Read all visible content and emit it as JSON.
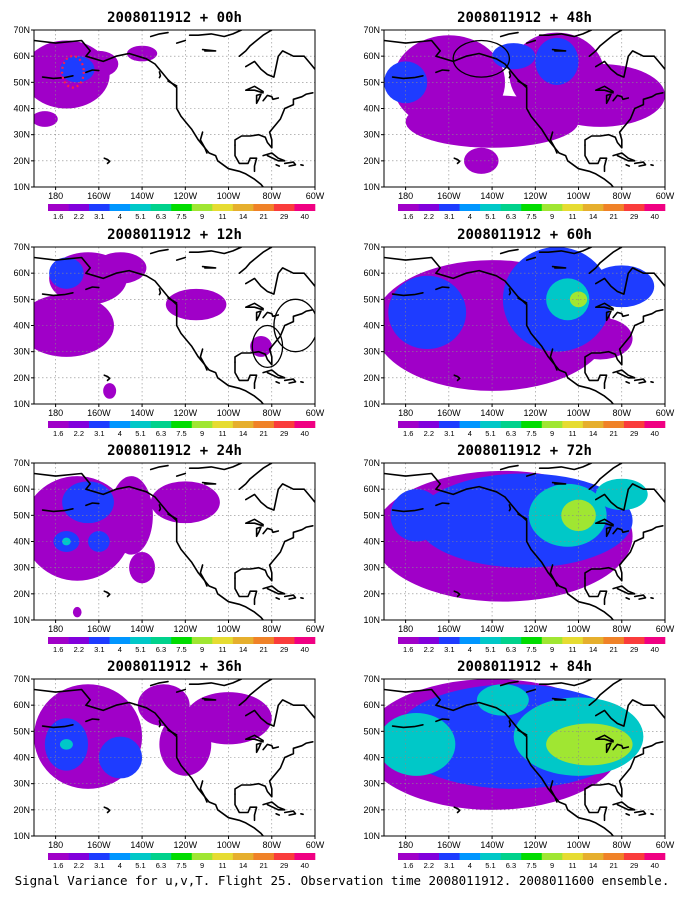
{
  "figure": {
    "caption": "Signal Variance for u,v,T. Flight 25. Observation time 2008011912. 2008011600 ensemble.",
    "panels": [
      {
        "title": "2008011912 + 00h",
        "markers": [
          {
            "lon": -172,
            "lat": 54,
            "rlon": 5,
            "rlat": 6,
            "style": "red-dashed"
          }
        ],
        "blobs": [
          [
            -175,
            53,
            20,
            13,
            1
          ],
          [
            -170,
            55,
            8,
            5,
            2
          ],
          [
            -160,
            57,
            9,
            5,
            1
          ],
          [
            -185,
            36,
            6,
            3,
            1
          ],
          [
            -140,
            61,
            7,
            3,
            1
          ]
        ]
      },
      {
        "title": "2008011912 + 48h",
        "markers": [
          {
            "lon": -145,
            "lat": 59,
            "rlon": 13,
            "rlat": 7,
            "style": "circle"
          }
        ],
        "blobs": [
          [
            -160,
            50,
            26,
            18,
            1
          ],
          [
            -110,
            53,
            22,
            16,
            1
          ],
          [
            -90,
            45,
            30,
            12,
            1
          ],
          [
            -140,
            35,
            40,
            10,
            1
          ],
          [
            -180,
            50,
            10,
            8,
            2
          ],
          [
            -110,
            58,
            10,
            9,
            2
          ],
          [
            -130,
            60,
            10,
            5,
            2
          ],
          [
            -145,
            20,
            8,
            5,
            1
          ]
        ]
      },
      {
        "title": "2008011912 + 12h",
        "markers": [
          {
            "lon": -82,
            "lat": 32,
            "rlon": 7,
            "rlat": 8,
            "style": "circle"
          },
          {
            "lon": -69,
            "lat": 40,
            "rlon": 10,
            "rlat": 10,
            "style": "circle"
          }
        ],
        "blobs": [
          [
            -175,
            40,
            22,
            12,
            1
          ],
          [
            -165,
            58,
            18,
            10,
            1
          ],
          [
            -150,
            62,
            12,
            6,
            1
          ],
          [
            -175,
            60,
            8,
            6,
            2
          ],
          [
            -115,
            48,
            14,
            6,
            1
          ],
          [
            -85,
            32,
            5,
            4,
            1
          ],
          [
            -155,
            15,
            3,
            3,
            1
          ]
        ]
      },
      {
        "title": "2008011912 + 60h",
        "markers": [],
        "blobs": [
          [
            -140,
            40,
            55,
            25,
            1
          ],
          [
            -110,
            50,
            25,
            20,
            2
          ],
          [
            -170,
            45,
            18,
            14,
            2
          ],
          [
            -105,
            50,
            10,
            8,
            3
          ],
          [
            -100,
            50,
            4,
            3,
            4
          ],
          [
            -80,
            55,
            15,
            8,
            2
          ],
          [
            -90,
            35,
            15,
            8,
            1
          ],
          [
            -140,
            20,
            8,
            4,
            1
          ]
        ]
      },
      {
        "title": "2008011912 + 24h",
        "markers": [],
        "blobs": [
          [
            -170,
            45,
            25,
            20,
            1
          ],
          [
            -175,
            40,
            6,
            4,
            2
          ],
          [
            -160,
            40,
            5,
            4,
            2
          ],
          [
            -165,
            55,
            12,
            8,
            2
          ],
          [
            -120,
            55,
            16,
            8,
            1
          ],
          [
            -145,
            50,
            10,
            15,
            1
          ],
          [
            -175,
            40,
            2,
            1.5,
            3
          ],
          [
            -140,
            30,
            6,
            6,
            1
          ],
          [
            -170,
            13,
            2,
            2,
            1
          ]
        ]
      },
      {
        "title": "2008011912 + 72h",
        "markers": [],
        "blobs": [
          [
            -135,
            42,
            60,
            25,
            1
          ],
          [
            -125,
            48,
            50,
            18,
            2
          ],
          [
            -105,
            50,
            18,
            12,
            3
          ],
          [
            -100,
            50,
            8,
            6,
            4
          ],
          [
            -175,
            50,
            12,
            10,
            2
          ],
          [
            -80,
            58,
            12,
            6,
            3
          ]
        ]
      },
      {
        "title": "2008011912 + 36h",
        "markers": [],
        "blobs": [
          [
            -165,
            48,
            25,
            20,
            1
          ],
          [
            -175,
            45,
            10,
            10,
            2
          ],
          [
            -175,
            45,
            3,
            2,
            3
          ],
          [
            -130,
            60,
            12,
            8,
            1
          ],
          [
            -100,
            55,
            20,
            10,
            1
          ],
          [
            -120,
            45,
            12,
            12,
            1
          ],
          [
            -150,
            40,
            10,
            8,
            2
          ]
        ]
      },
      {
        "title": "2008011912 + 84h",
        "markers": [],
        "blobs": [
          [
            -140,
            45,
            60,
            25,
            1
          ],
          [
            -130,
            48,
            55,
            20,
            2
          ],
          [
            -100,
            48,
            30,
            15,
            3
          ],
          [
            -95,
            45,
            20,
            8,
            4
          ],
          [
            -175,
            45,
            18,
            12,
            3
          ],
          [
            -135,
            62,
            12,
            6,
            3
          ]
        ]
      }
    ],
    "axes": {
      "x_ticks": [
        {
          "lon": -180,
          "label": "180"
        },
        {
          "lon": -160,
          "label": "160W"
        },
        {
          "lon": -140,
          "label": "140W"
        },
        {
          "lon": -120,
          "label": "120W"
        },
        {
          "lon": -100,
          "label": "100W"
        },
        {
          "lon": -80,
          "label": "80W"
        },
        {
          "lon": -60,
          "label": "60W"
        }
      ],
      "y_ticks": [
        {
          "lat": 10,
          "label": "10N"
        },
        {
          "lat": 20,
          "label": "20N"
        },
        {
          "lat": 30,
          "label": "30N"
        },
        {
          "lat": 40,
          "label": "40N"
        },
        {
          "lat": 50,
          "label": "50N"
        },
        {
          "lat": 60,
          "label": "60N"
        },
        {
          "lat": 70,
          "label": "70N"
        }
      ],
      "lon_range": [
        -190,
        -60
      ],
      "lat_range": [
        10,
        70
      ]
    },
    "colorbar": {
      "labels": [
        "1.6",
        "2.2",
        "3.1",
        "4",
        "5.1",
        "6.3",
        "7.5",
        "9",
        "11",
        "14",
        "21",
        "29",
        "40"
      ],
      "colors": [
        "#a000c8",
        "#8200dc",
        "#1e3cff",
        "#0096ff",
        "#00c8c8",
        "#00d28c",
        "#00dc00",
        "#a0e632",
        "#e6dc32",
        "#e6af2d",
        "#f08228",
        "#fa3c3c",
        "#f00082"
      ]
    },
    "blob_colors": [
      "#a000c8",
      "#1e3cff",
      "#00c8c8",
      "#a0e632",
      "#e6dc32"
    ]
  }
}
